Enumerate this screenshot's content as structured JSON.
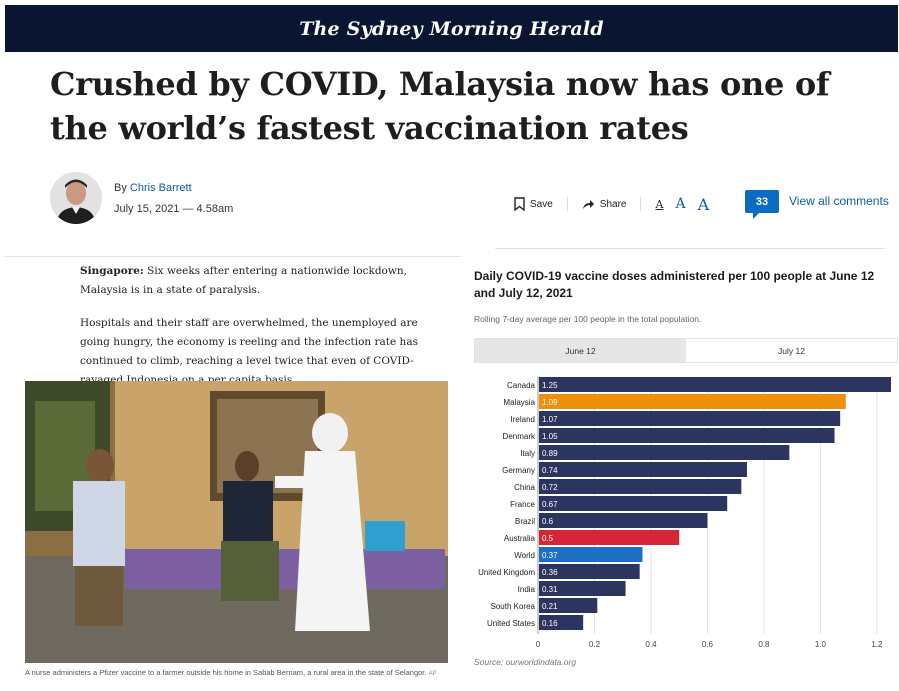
{
  "masthead": {
    "title": "The Sydney Morning Herald"
  },
  "article": {
    "headline": "Crushed by COVID, Malaysia now has one of the world’s fastest vaccination rates",
    "byline_prefix": "By",
    "author": "Chris Barrett",
    "date": "July 15, 2021 — 4.58am",
    "paragraphs": [
      {
        "lead": "Singapore:",
        "text": " Six weeks after entering a nationwide lockdown, Malaysia is in a state of paralysis."
      },
      {
        "lead": "",
        "text": "Hospitals and their staff are overwhelmed, the unemployed are going hungry, the economy is reeling and the infection rate has continued to climb, reaching a level twice that even of COVID-ravaged Indonesia on a per capita basis."
      }
    ],
    "photo_caption": "A nurse administers a Pfizer vaccine to a farmer outside his home in Sabab Bernam, a rural area in the state of Selangor.",
    "photo_credit": "AP"
  },
  "toolbar": {
    "save_label": "Save",
    "share_label": "Share",
    "font_small": "A",
    "font_medium": "A",
    "font_large": "A",
    "comment_count": "33",
    "view_comments_label": "View all comments"
  },
  "colors": {
    "masthead_bg": "#0a1631",
    "bar_default": "#2b3560",
    "bar_malaysia": "#f0900a",
    "bar_australia": "#d72638",
    "bar_world": "#1f6fc5",
    "link": "#0a5ea8"
  },
  "chart_data": {
    "type": "bar",
    "orientation": "horizontal",
    "title": "Daily COVID-19 vaccine doses administered per 100 people at June 12 and July 12, 2021",
    "subtitle": "Rolling 7-day average per 100 people in the total population.",
    "tabs": [
      "June 12",
      "July 12"
    ],
    "active_tab": "July 12",
    "categories": [
      "Canada",
      "Malaysia",
      "Ireland",
      "Denmark",
      "Italy",
      "Germany",
      "China",
      "France",
      "Brazil",
      "Australia",
      "World",
      "United Kingdom",
      "India",
      "South Korea",
      "United States"
    ],
    "values": [
      1.25,
      1.09,
      1.07,
      1.05,
      0.89,
      0.74,
      0.72,
      0.67,
      0.6,
      0.5,
      0.37,
      0.36,
      0.31,
      0.21,
      0.16
    ],
    "value_labels": [
      "1.25",
      "1.09",
      "1.07",
      "1.05",
      "0.89",
      "0.74",
      "0.72",
      "0.67",
      "0.6",
      "0.5",
      "0.37",
      "0.36",
      "0.31",
      "0.21",
      "0.16"
    ],
    "highlight": {
      "Malaysia": "#f0900a",
      "Australia": "#d72638",
      "World": "#1f6fc5"
    },
    "xlim": [
      0,
      1.25
    ],
    "xticks": [
      0,
      0.2,
      0.4,
      0.6,
      0.8,
      1.0,
      1.2
    ],
    "xtick_labels": [
      "0",
      "0.2",
      "0.4",
      "0.6",
      "0.8",
      "1.0",
      "1.2"
    ],
    "grid": true,
    "source": "Source: ourworldindata.org"
  }
}
